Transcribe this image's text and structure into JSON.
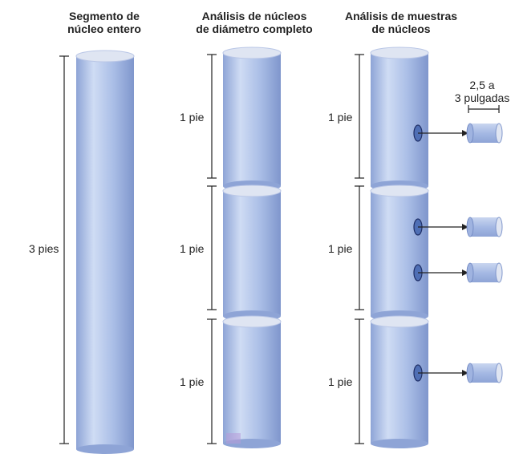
{
  "columns": [
    {
      "title_line1": "Segmento de",
      "title_line2": "núcleo entero"
    },
    {
      "title_line1": "Análisis de núcleos",
      "title_line2": "de diámetro completo"
    },
    {
      "title_line1": "Análisis de muestras",
      "title_line2": "de núcleos"
    }
  ],
  "labels": {
    "whole_length": "3 pies",
    "segment_length": "1 pie",
    "sample_size_line1": "2,5 a",
    "sample_size_line2": "3 pulgadas"
  },
  "colors": {
    "core_body": "#a9bde6",
    "core_highlight": "#cfdcf4",
    "core_shadow": "#8ea4d6",
    "core_top": "#dfe5f2",
    "lines": "#222222",
    "accent": "#b79ad8"
  }
}
